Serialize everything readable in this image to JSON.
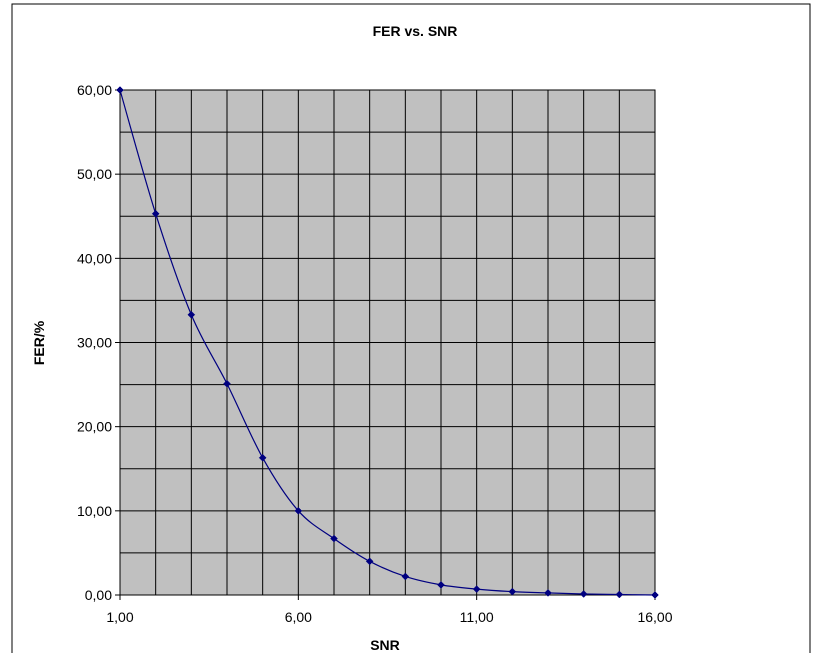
{
  "chart_data": {
    "type": "line",
    "title": "FER vs. SNR",
    "xlabel": "SNR",
    "ylabel": "FER/%",
    "xlim": [
      1,
      16
    ],
    "ylim": [
      0,
      60
    ],
    "x_ticks": [
      1,
      6,
      11,
      16
    ],
    "x_tick_labels": [
      "1,00",
      "6,00",
      "11,00",
      "16,00"
    ],
    "y_ticks": [
      0,
      10,
      20,
      30,
      40,
      50,
      60
    ],
    "y_tick_labels": [
      "0,00",
      "10,00",
      "20,00",
      "30,00",
      "40,00",
      "50,00",
      "60,00"
    ],
    "grid": true,
    "plot_background": "#c0c0c0",
    "line_color": "#000080",
    "marker": "diamond",
    "series": [
      {
        "x": [
          1,
          2,
          3,
          4,
          5,
          6,
          7,
          8,
          9,
          10,
          11,
          12,
          13,
          14,
          15,
          16
        ],
        "y": [
          60.0,
          45.3,
          33.3,
          25.1,
          16.3,
          10.0,
          6.7,
          4.0,
          2.2,
          1.2,
          0.7,
          0.4,
          0.25,
          0.12,
          0.06,
          0.0
        ]
      }
    ]
  }
}
